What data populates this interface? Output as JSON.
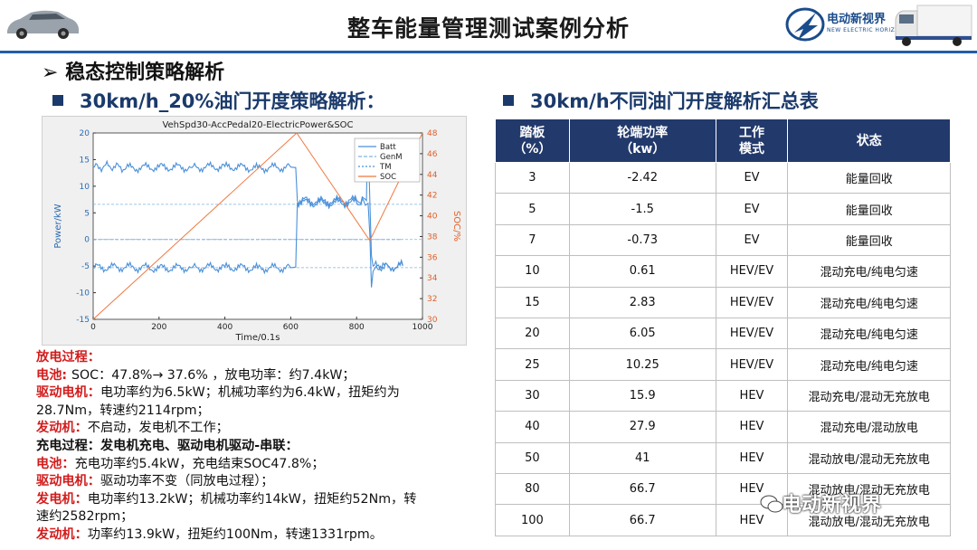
{
  "header": {
    "title": "整车能量管理测试案例分析",
    "logo_text": "电动新视界",
    "logo_sub": "NEW ELECTRIC HORIZON"
  },
  "section": {
    "marker": "➢",
    "title": "稳态控制策略解析"
  },
  "left": {
    "subtitle": "30km/h_20%油门开度策略解析："
  },
  "right": {
    "subtitle": "30km/h不同油门开度解析汇总表"
  },
  "chart_data": {
    "type": "line",
    "title": "VehSpd30-AccPedal20-ElectricPower&SOC",
    "xlabel": "Time/0.1s",
    "ylabel": "Power/kW",
    "y2label": "SOC/%",
    "xlim": [
      0,
      1000
    ],
    "ylim": [
      -15,
      20
    ],
    "y2lim": [
      30,
      48
    ],
    "x_ticks": [
      "0",
      "200",
      "400",
      "600",
      "800",
      "1000"
    ],
    "y_ticks": [
      "-15",
      "-10",
      "-5",
      "0",
      "5",
      "10",
      "15",
      "20"
    ],
    "y2_ticks": [
      "30",
      "32",
      "34",
      "36",
      "38",
      "40",
      "42",
      "44",
      "46",
      "48"
    ],
    "legend": [
      "Batt",
      "GenM",
      "TM",
      "SOC"
    ],
    "legend_position": "top-right",
    "series": [
      {
        "name": "Batt",
        "axis": "left",
        "x": [
          0,
          50,
          100,
          200,
          300,
          400,
          500,
          600,
          615,
          620,
          700,
          800,
          830,
          833,
          836,
          840,
          845,
          850,
          900,
          940
        ],
        "y": [
          13.5,
          13.8,
          13.4,
          13.6,
          13.5,
          13.7,
          13.4,
          13.6,
          13.5,
          7.3,
          7.2,
          7.4,
          7.3,
          19,
          17,
          7.5,
          -3,
          -5,
          -5.2,
          -4.8
        ]
      },
      {
        "name": "GenM",
        "axis": "left",
        "x": [
          0,
          615,
          620,
          840,
          845,
          860,
          940
        ],
        "y": [
          0,
          0,
          0,
          0,
          0,
          0,
          0
        ]
      },
      {
        "name": "TM",
        "axis": "left",
        "x": [
          0,
          100,
          200,
          300,
          400,
          500,
          600,
          615,
          620,
          700,
          800,
          835,
          840,
          845,
          850,
          860,
          900,
          940
        ],
        "y": [
          -5.3,
          -5.2,
          -5.4,
          -5.3,
          -5.2,
          -5.4,
          -5.3,
          -5.2,
          6.9,
          6.8,
          6.9,
          6.8,
          1,
          -9,
          -6,
          -5,
          -5.2,
          -5
        ]
      },
      {
        "name": "SOC",
        "axis": "right",
        "x": [
          0,
          618,
          840,
          1000
        ],
        "y": [
          30,
          48,
          37.6,
          48
        ]
      }
    ],
    "ref_lines": [
      {
        "axis": "left",
        "y": 6.6
      },
      {
        "axis": "left",
        "y": 0
      },
      {
        "axis": "left",
        "y": -5.3
      }
    ]
  },
  "notes": [
    [
      {
        "t": "放电过程：",
        "c": "r"
      }
    ],
    [
      {
        "t": "电池: ",
        "c": "r"
      },
      {
        "t": "SOC：47.8%→ 37.6% ，放电功率：约7.4kW；",
        "c": ""
      }
    ],
    [
      {
        "t": "驱动电机：",
        "c": "r"
      },
      {
        "t": "电功率约为6.5kW；机械功率约为6.4kW，扭矩约为",
        "c": ""
      }
    ],
    [
      {
        "t": "28.7Nm，转速约2114rpm；",
        "c": ""
      }
    ],
    [
      {
        "t": "发动机：",
        "c": "r"
      },
      {
        "t": "不启动，发电机不工作；",
        "c": ""
      }
    ],
    [
      {
        "t": "充电过程：发电机充电、驱动电机驱动-串联：",
        "c": "b"
      }
    ],
    [
      {
        "t": "电池：",
        "c": "r"
      },
      {
        "t": "充电功率约5.4kW，充电结束SOC47.8%；",
        "c": ""
      }
    ],
    [
      {
        "t": "驱动电机：",
        "c": "r"
      },
      {
        "t": "驱动功率不变（同放电过程）；",
        "c": ""
      }
    ],
    [
      {
        "t": "发电机：",
        "c": "r"
      },
      {
        "t": "电功率约13.2kW；机械功率约14kW，扭矩约52Nm，转",
        "c": ""
      }
    ],
    [
      {
        "t": "速约2582rpm；",
        "c": ""
      }
    ],
    [
      {
        "t": "发动机：",
        "c": "r"
      },
      {
        "t": "功率约13.9kW，扭矩约100Nm，转速1331rpm。",
        "c": ""
      }
    ]
  ],
  "table": {
    "headers": [
      [
        "踏板",
        "（%）"
      ],
      [
        "轮端功率",
        "（kw）"
      ],
      [
        "工作",
        "模式"
      ],
      [
        "状态"
      ]
    ],
    "rows": [
      [
        "3",
        "-2.42",
        "EV",
        "能量回收"
      ],
      [
        "5",
        "-1.5",
        "EV",
        "能量回收"
      ],
      [
        "7",
        "-0.73",
        "EV",
        "能量回收"
      ],
      [
        "10",
        "0.61",
        "HEV/EV",
        "混动充电/纯电匀速"
      ],
      [
        "15",
        "2.83",
        "HEV/EV",
        "混动充电/纯电匀速"
      ],
      [
        "20",
        "6.05",
        "HEV/EV",
        "混动充电/纯电匀速"
      ],
      [
        "25",
        "10.25",
        "HEV/EV",
        "混动充电/纯电匀速"
      ],
      [
        "30",
        "15.9",
        "HEV",
        "混动充电/混动无充放电"
      ],
      [
        "40",
        "27.9",
        "HEV",
        "混动充电/混动放电"
      ],
      [
        "50",
        "41",
        "HEV",
        "混动放电/混动无充放电"
      ],
      [
        "80",
        "66.7",
        "HEV",
        "混动放电/混动无充放电"
      ],
      [
        "100",
        "66.7",
        "HEV",
        "混动放电/混动无充放电"
      ]
    ]
  },
  "watermark": "电动新视界",
  "colors": {
    "header_line": "#1f5fa8",
    "table_header": "#22396b",
    "accent_red": "#d21c1c",
    "batt": "#4a90d9",
    "soc": "#f07840",
    "ref": "#7fb3e0"
  }
}
